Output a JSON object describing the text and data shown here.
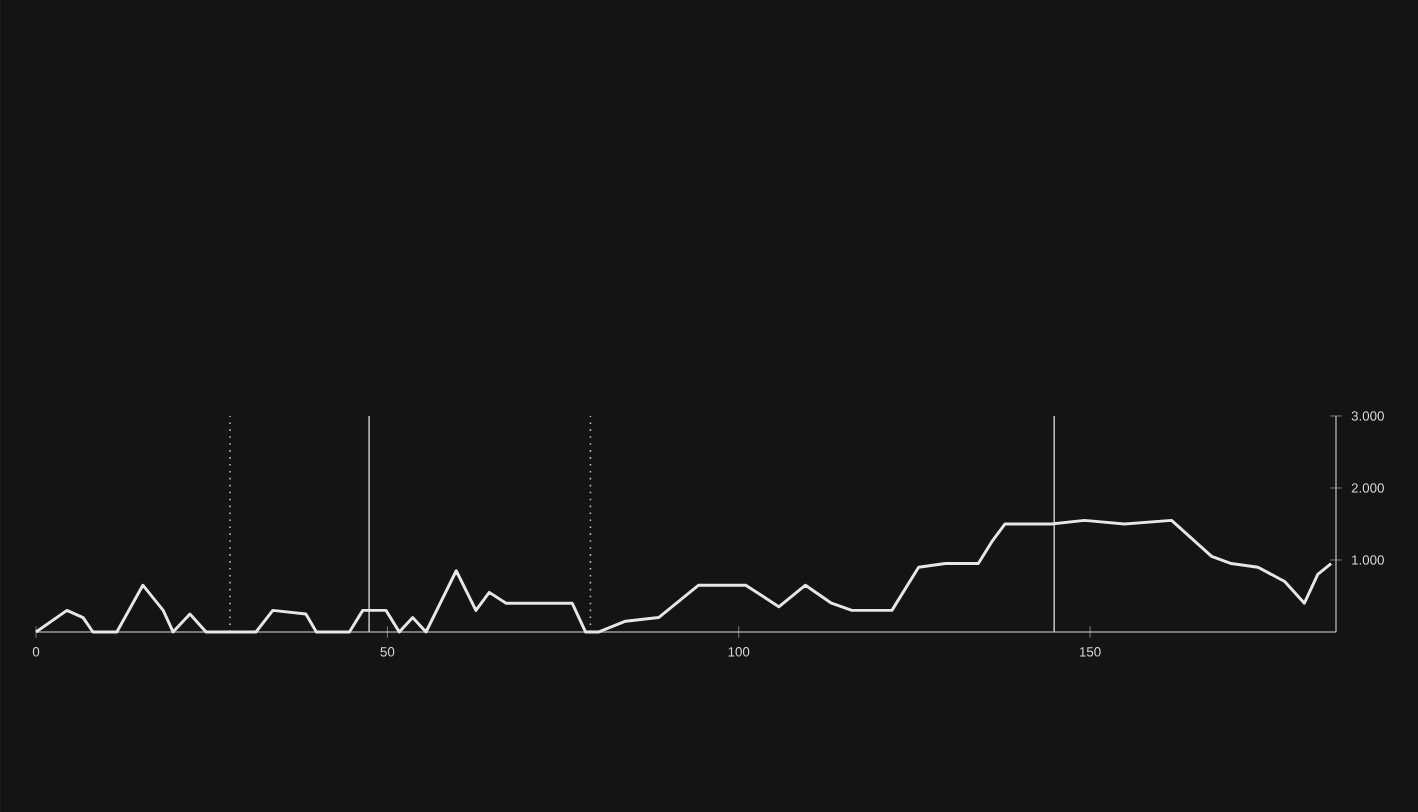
{
  "chart_data": {
    "type": "line",
    "x": [
      0,
      4.4,
      6.7,
      8.1,
      11.5,
      15.2,
      18.1,
      19.5,
      21.9,
      24.2,
      31.3,
      33.7,
      38.4,
      39.9,
      44.6,
      46.5,
      49.8,
      51.7,
      53.6,
      55.5,
      59.8,
      62.6,
      64.5,
      66.9,
      76.3,
      78.2,
      80.1,
      83.9,
      88.6,
      94.3,
      101,
      105.7,
      109.5,
      113.2,
      116.1,
      121.8,
      125.6,
      129.4,
      134.1,
      136,
      137.9,
      144.5,
      149.2,
      154.9,
      161.6,
      167.3,
      170.1,
      173.9,
      177.7,
      180.5,
      182.4,
      184.3
    ],
    "series": [
      {
        "color": "#e6e6e6",
        "values": [
          0,
          300,
          200,
          0,
          0,
          650,
          300,
          0,
          250,
          0,
          0,
          300,
          250,
          0,
          0,
          300,
          300,
          0,
          200,
          0,
          850,
          300,
          550,
          400,
          400,
          0,
          0,
          150,
          200,
          650,
          650,
          350,
          650,
          400,
          300,
          300,
          900,
          950,
          950,
          1250,
          1500,
          1500,
          1550,
          1500,
          1550,
          1050,
          950,
          900,
          700,
          400,
          800,
          950
        ]
      }
    ],
    "xlim": [
      0,
      185
    ],
    "xticks": [
      0,
      50,
      100,
      150
    ],
    "ylim": [
      0,
      3000
    ],
    "yticks": [
      {
        "value": 1000,
        "label": "1.000"
      },
      {
        "value": 2000,
        "label": "2.000"
      },
      {
        "value": 3000,
        "label": "3.000"
      }
    ],
    "ref_lines": [
      {
        "axis": "x",
        "value": 27.6,
        "color": "#bbbbbb",
        "line_style": "dotted"
      },
      {
        "axis": "x",
        "value": 47.4,
        "color": "#bbbbbb",
        "line_style": "solid"
      },
      {
        "axis": "x",
        "value": 78.9,
        "color": "#bbbbbb",
        "line_style": "dotted"
      },
      {
        "axis": "x",
        "value": 144.9,
        "color": "#bbbbbb",
        "line_style": "solid"
      }
    ],
    "grid": false,
    "marker": "none",
    "line_style": "solid"
  }
}
